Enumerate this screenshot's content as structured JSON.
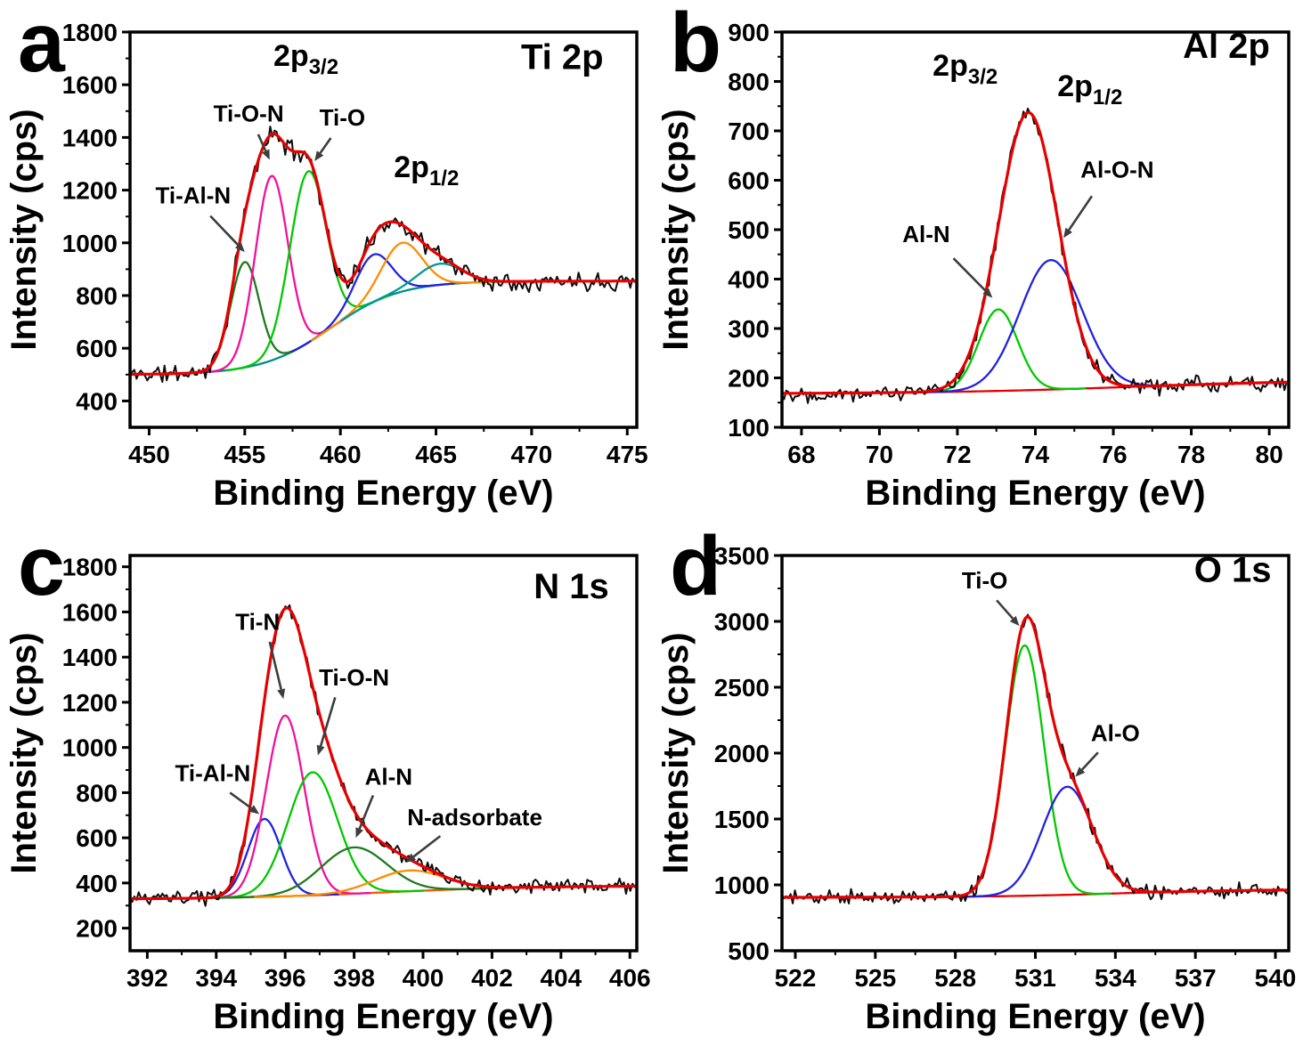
{
  "figure": {
    "background": "#ffffff"
  },
  "chart_data": [
    {
      "id": "a",
      "panel_letter": "a",
      "type": "line",
      "title": "Ti 2p",
      "title_color": "#1a1ae6",
      "title_pos": {
        "x": 471.6,
        "y": 1660
      },
      "xlabel": "Binding Energy (eV)",
      "ylabel": "Intensity (cps)",
      "xlim": [
        449,
        475.5
      ],
      "ylim": [
        300,
        1800
      ],
      "xticks": [
        450,
        455,
        460,
        465,
        470,
        475
      ],
      "yticks": [
        400,
        600,
        800,
        1000,
        1200,
        1400,
        1600,
        1800
      ],
      "baseline": {
        "low": 500,
        "high": 855,
        "center": 459.5,
        "width": 1.8
      },
      "curves": [
        {
          "name": "background",
          "role": "baseline",
          "color": "#008b8b",
          "peaks": []
        },
        {
          "name": "Ti-Al-N",
          "role": "component",
          "color": "#1e7a1e",
          "peaks": [
            {
              "c": 455.0,
              "a": 400,
              "s": 0.75
            }
          ]
        },
        {
          "name": "Ti-O-N",
          "role": "component",
          "color": "#f0119b",
          "peaks": [
            {
              "c": 456.4,
              "a": 700,
              "s": 0.85
            }
          ]
        },
        {
          "name": "Ti-O",
          "role": "component",
          "color": "#00c800",
          "peaks": [
            {
              "c": 458.3,
              "a": 650,
              "s": 0.95
            }
          ]
        },
        {
          "name": "2p1-2-blue",
          "role": "component",
          "color": "#2222dd",
          "peaks": [
            {
              "c": 461.7,
              "a": 180,
              "s": 0.95
            }
          ]
        },
        {
          "name": "2p1-2-orange",
          "role": "component",
          "color": "#ff8c00",
          "peaks": [
            {
              "c": 463.2,
              "a": 185,
              "s": 1.05
            }
          ]
        },
        {
          "name": "2p1-2-teal",
          "role": "component",
          "color": "#009898",
          "peaks": [
            {
              "c": 465.2,
              "a": 80,
              "s": 1.15
            }
          ]
        },
        {
          "name": "fit-envelope",
          "role": "envelope",
          "color": "#e60000",
          "peaks": [
            {
              "c": 455.0,
              "a": 400,
              "s": 0.75
            },
            {
              "c": 456.4,
              "a": 700,
              "s": 0.85
            },
            {
              "c": 458.3,
              "a": 650,
              "s": 0.95
            },
            {
              "c": 461.7,
              "a": 180,
              "s": 0.95
            },
            {
              "c": 463.2,
              "a": 185,
              "s": 1.05
            },
            {
              "c": 465.2,
              "a": 80,
              "s": 1.15
            }
          ]
        }
      ],
      "data_curve": {
        "color": "#0d0d0d",
        "noise": 44,
        "seed": 11
      },
      "annotations": [
        {
          "text": "2p",
          "sub": "3/2",
          "color": "#1a1ae6",
          "size": 34,
          "x": 458.2,
          "y": 1672
        },
        {
          "text": "2p",
          "sub": "1/2",
          "color": "#1a1ae6",
          "size": 34,
          "x": 464.5,
          "y": 1250
        },
        {
          "text": "Ti-O-N",
          "color": "#000000",
          "size": 26,
          "x": 455.2,
          "y": 1460,
          "arrow": {
            "x1": 455.7,
            "y1": 1412,
            "x2": 456.3,
            "y2": 1315
          }
        },
        {
          "text": "Ti-O",
          "color": "#000000",
          "size": 26,
          "x": 460.1,
          "y": 1445,
          "arrow": {
            "x1": 459.5,
            "y1": 1398,
            "x2": 458.65,
            "y2": 1310
          }
        },
        {
          "text": "Ti-Al-N",
          "color": "#000000",
          "size": 26,
          "x": 452.3,
          "y": 1150,
          "arrow": {
            "x1": 453.2,
            "y1": 1102,
            "x2": 455.0,
            "y2": 965
          }
        }
      ]
    },
    {
      "id": "b",
      "panel_letter": "b",
      "type": "line",
      "title": "Al 2p",
      "title_color": "#1a1ae6",
      "title_pos": {
        "x": 78.9,
        "y": 848
      },
      "xlabel": "Binding Energy (eV)",
      "ylabel": "Intensity (cps)",
      "xlim": [
        67.5,
        80.5
      ],
      "ylim": [
        100,
        900
      ],
      "xticks": [
        68,
        70,
        72,
        74,
        76,
        78,
        80
      ],
      "yticks": [
        100,
        200,
        300,
        400,
        500,
        600,
        700,
        800,
        900
      ],
      "baseline": {
        "low": 168,
        "high": 196,
        "center": 76.5,
        "width": 2.5
      },
      "curves": [
        {
          "name": "background",
          "role": "baseline",
          "color": "#e60000",
          "peaks": []
        },
        {
          "name": "Al-N",
          "role": "component",
          "color": "#00c800",
          "peaks": [
            {
              "c": 73.05,
              "a": 165,
              "s": 0.5
            }
          ]
        },
        {
          "name": "Al-O-N",
          "role": "component",
          "color": "#2222dd",
          "peaks": [
            {
              "c": 74.4,
              "a": 262,
              "s": 0.8
            }
          ]
        },
        {
          "name": "fit-envelope",
          "role": "envelope",
          "color": "#e60000",
          "peaks": [
            {
              "c": 73.82,
              "a": 562,
              "s": 0.76
            }
          ]
        }
      ],
      "data_curve": {
        "color": "#0d0d0d",
        "noise": 21,
        "seed": 22
      },
      "annotations": [
        {
          "text": "2p",
          "sub": "3/2",
          "color": "#1a1ae6",
          "size": 34,
          "x": 72.2,
          "y": 812
        },
        {
          "text": "2p",
          "sub": "1/2",
          "color": "#1a1ae6",
          "size": 34,
          "x": 75.4,
          "y": 770
        },
        {
          "text": "Al-N",
          "color": "#000000",
          "size": 26,
          "x": 71.2,
          "y": 475,
          "arrow": {
            "x1": 71.9,
            "y1": 442,
            "x2": 72.9,
            "y2": 362
          }
        },
        {
          "text": "Al-O-N",
          "color": "#000000",
          "size": 26,
          "x": 76.1,
          "y": 605,
          "arrow": {
            "x1": 75.45,
            "y1": 568,
            "x2": 74.72,
            "y2": 483
          }
        }
      ]
    },
    {
      "id": "c",
      "panel_letter": "c",
      "type": "line",
      "title": "N 1s",
      "title_color": "#1a1ae6",
      "title_pos": {
        "x": 404.3,
        "y": 1660
      },
      "xlabel": "Binding Energy (eV)",
      "ylabel": "Intensity (cps)",
      "xlim": [
        391.5,
        406.2
      ],
      "ylim": [
        100,
        1850
      ],
      "xticks": [
        392,
        394,
        396,
        398,
        400,
        402,
        404,
        406
      ],
      "yticks": [
        200,
        400,
        600,
        800,
        1000,
        1200,
        1400,
        1600,
        1800
      ],
      "baseline": {
        "low": 328,
        "high": 388,
        "center": 398.8,
        "width": 2.2
      },
      "curves": [
        {
          "name": "background",
          "role": "baseline",
          "color": "#ff5500",
          "peaks": []
        },
        {
          "name": "Ti-Al-N",
          "role": "component",
          "color": "#2222dd",
          "peaks": [
            {
              "c": 395.4,
              "a": 345,
              "s": 0.48
            }
          ]
        },
        {
          "name": "Ti-N",
          "role": "component",
          "color": "#f0119b",
          "peaks": [
            {
              "c": 396.0,
              "a": 800,
              "s": 0.55
            }
          ]
        },
        {
          "name": "Ti-O-N",
          "role": "component",
          "color": "#00c800",
          "peaks": [
            {
              "c": 396.8,
              "a": 545,
              "s": 0.72
            }
          ]
        },
        {
          "name": "Al-N",
          "role": "component",
          "color": "#1e7a1e",
          "peaks": [
            {
              "c": 398.0,
              "a": 205,
              "s": 0.95
            }
          ]
        },
        {
          "name": "N-adsorbate",
          "role": "component",
          "color": "#ff8c00",
          "peaks": [
            {
              "c": 399.6,
              "a": 92,
              "s": 1.0
            }
          ]
        },
        {
          "name": "fit-envelope",
          "role": "envelope",
          "color": "#e60000",
          "peaks": [
            {
              "c": 395.4,
              "a": 345,
              "s": 0.48
            },
            {
              "c": 396.0,
              "a": 800,
              "s": 0.55
            },
            {
              "c": 396.8,
              "a": 545,
              "s": 0.72
            },
            {
              "c": 398.0,
              "a": 205,
              "s": 0.95
            },
            {
              "c": 399.6,
              "a": 92,
              "s": 1.0
            }
          ]
        }
      ],
      "data_curve": {
        "color": "#0d0d0d",
        "noise": 38,
        "seed": 33
      },
      "annotations": [
        {
          "text": "Ti-N",
          "color": "#000000",
          "size": 26,
          "x": 395.2,
          "y": 1520,
          "arrow": {
            "x1": 395.55,
            "y1": 1468,
            "x2": 395.95,
            "y2": 1215
          }
        },
        {
          "text": "Ti-O-N",
          "color": "#000000",
          "size": 26,
          "x": 398.0,
          "y": 1275,
          "arrow": {
            "x1": 397.45,
            "y1": 1222,
            "x2": 396.95,
            "y2": 965
          }
        },
        {
          "text": "Ti-Al-N",
          "color": "#000000",
          "size": 26,
          "x": 393.9,
          "y": 850,
          "arrow": {
            "x1": 394.4,
            "y1": 800,
            "x2": 395.25,
            "y2": 705
          }
        },
        {
          "text": "Al-N",
          "color": "#000000",
          "size": 26,
          "x": 399.0,
          "y": 835,
          "arrow": {
            "x1": 398.55,
            "y1": 788,
            "x2": 398.05,
            "y2": 600
          }
        },
        {
          "text": "N-adsorbate",
          "color": "#000000",
          "size": 26,
          "x": 401.5,
          "y": 655,
          "arrow": {
            "x1": 400.5,
            "y1": 608,
            "x2": 399.5,
            "y2": 490
          }
        }
      ]
    },
    {
      "id": "d",
      "panel_letter": "d",
      "type": "line",
      "title": "O 1s",
      "title_color": "#1a1ae6",
      "title_pos": {
        "x": 538.4,
        "y": 3300
      },
      "xlabel": "Binding Energy (eV)",
      "ylabel": "Intensity (cps)",
      "xlim": [
        521.5,
        540.5
      ],
      "ylim": [
        500,
        3500
      ],
      "xticks": [
        522,
        525,
        528,
        531,
        534,
        537,
        540
      ],
      "yticks": [
        500,
        1000,
        1500,
        2000,
        2500,
        3000,
        3500
      ],
      "baseline": {
        "low": 905,
        "high": 965,
        "center": 534.0,
        "width": 2.5
      },
      "curves": [
        {
          "name": "background",
          "role": "baseline",
          "color": "#e60000",
          "peaks": []
        },
        {
          "name": "Ti-O",
          "role": "component",
          "color": "#00c800",
          "peaks": [
            {
              "c": 530.6,
              "a": 1900,
              "s": 0.72
            }
          ]
        },
        {
          "name": "Al-O",
          "role": "component",
          "color": "#2222dd",
          "peaks": [
            {
              "c": 532.2,
              "a": 820,
              "s": 0.95
            }
          ]
        },
        {
          "name": "fit-envelope",
          "role": "envelope",
          "color": "#e60000",
          "peaks": [
            {
              "c": 530.6,
              "a": 1900,
              "s": 0.72
            },
            {
              "c": 532.2,
              "a": 820,
              "s": 0.95
            }
          ]
        }
      ],
      "data_curve": {
        "color": "#0d0d0d",
        "noise": 66,
        "seed": 44
      },
      "annotations": [
        {
          "text": "Ti-O",
          "color": "#000000",
          "size": 26,
          "x": 529.1,
          "y": 3250,
          "arrow": {
            "x1": 529.55,
            "y1": 3160,
            "x2": 530.4,
            "y2": 2965
          }
        },
        {
          "text": "Al-O",
          "color": "#000000",
          "size": 26,
          "x": 534.0,
          "y": 2090,
          "arrow": {
            "x1": 533.35,
            "y1": 2005,
            "x2": 532.5,
            "y2": 1820
          }
        }
      ]
    }
  ]
}
